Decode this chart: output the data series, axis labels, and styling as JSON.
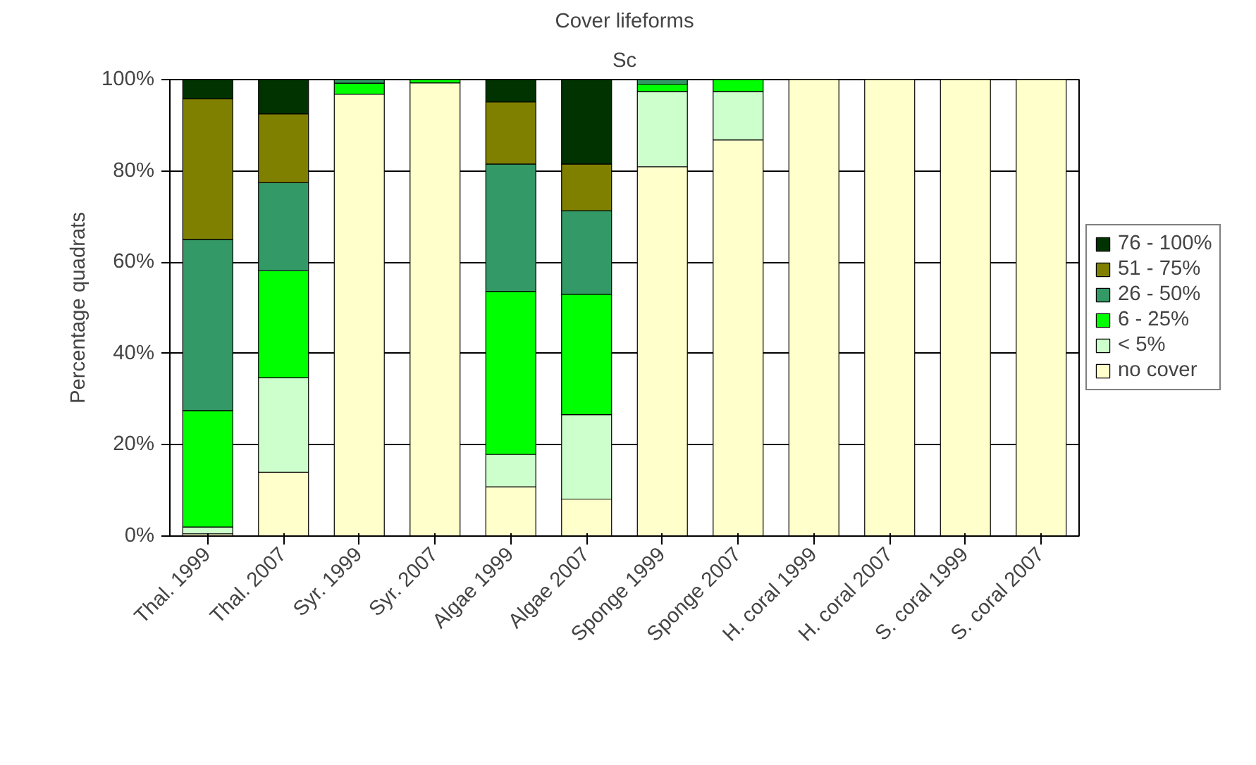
{
  "chart_data": {
    "type": "bar",
    "stacked": true,
    "title": "Cover lifeforms",
    "subtitle": "Sc",
    "ylabel": "Percentage quadrats",
    "categories": [
      "Thal. 1999",
      "Thal. 2007",
      "Syr. 1999",
      "Syr. 2007",
      "Algae 1999",
      "Algae 2007",
      "Sponge 1999",
      "Sponge 2007",
      "H. coral 1999",
      "H. coral 2007",
      "S. coral 1999",
      "S. coral 2007"
    ],
    "series": [
      {
        "name": "no cover",
        "color": "#ffffcc",
        "values": [
          0.5,
          14.0,
          96.8,
          99.3,
          10.8,
          8.1,
          80.9,
          86.8,
          100,
          100,
          100,
          100
        ]
      },
      {
        "name": "< 5%",
        "color": "#ccffcc",
        "values": [
          1.5,
          20.7,
          0,
          0,
          7.1,
          18.5,
          16.5,
          10.6,
          0,
          0,
          0,
          0
        ]
      },
      {
        "name": "6 - 25%",
        "color": "#00ff00",
        "values": [
          25.5,
          23.4,
          2.4,
          0.7,
          35.7,
          26.4,
          1.6,
          2.6,
          0,
          0,
          0,
          0
        ]
      },
      {
        "name": "26 - 50%",
        "color": "#339966",
        "values": [
          37.5,
          19.3,
          0.8,
          0,
          27.9,
          18.3,
          1.0,
          0,
          0,
          0,
          0,
          0
        ]
      },
      {
        "name": "51 - 75%",
        "color": "#808000",
        "values": [
          30.8,
          15.1,
          0,
          0,
          13.6,
          10.2,
          0,
          0,
          0,
          0,
          0,
          0
        ]
      },
      {
        "name": "76 - 100%",
        "color": "#003300",
        "values": [
          4.2,
          7.5,
          0,
          0,
          4.9,
          18.5,
          0,
          0,
          0,
          0,
          0,
          0
        ]
      }
    ],
    "ylim": [
      0,
      100
    ],
    "yticks": [
      {
        "value": 0,
        "label": "0%"
      },
      {
        "value": 20,
        "label": "20%"
      },
      {
        "value": 40,
        "label": "40%"
      },
      {
        "value": 60,
        "label": "60%"
      },
      {
        "value": 80,
        "label": "80%"
      },
      {
        "value": 100,
        "label": "100%"
      }
    ],
    "grid": "y",
    "legend": "right"
  }
}
